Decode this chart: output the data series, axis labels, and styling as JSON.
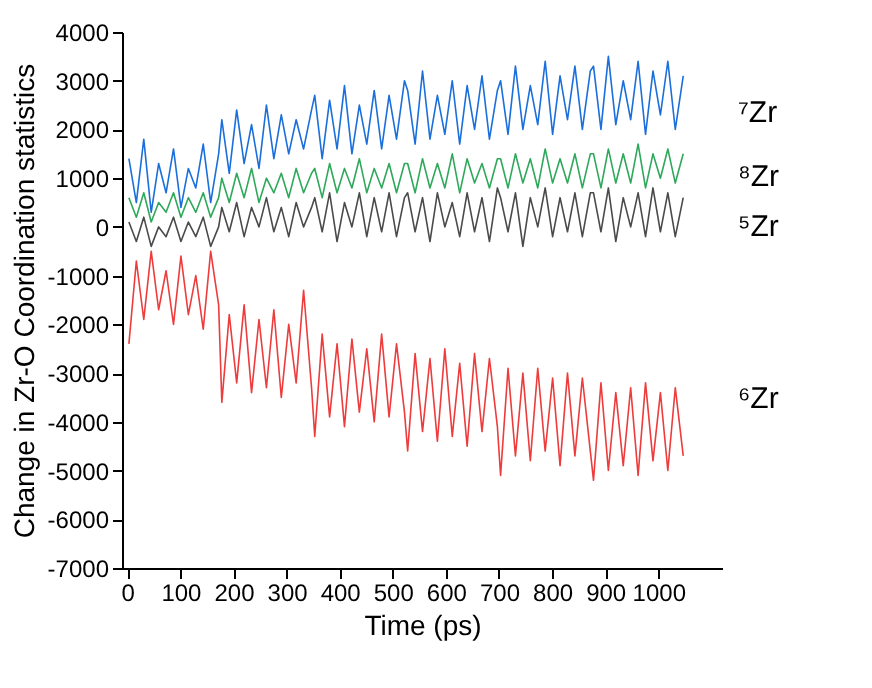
{
  "chart_data": {
    "type": "line",
    "xlabel": "Time (ps)",
    "ylabel": "Change in Zr-O Coordination statistics",
    "x": [
      3,
      17,
      31,
      45,
      59,
      73,
      87,
      101,
      115,
      129,
      143,
      157,
      172,
      178,
      192,
      206,
      220,
      234,
      248,
      262,
      276,
      290,
      304,
      318,
      332,
      347,
      353,
      367,
      381,
      395,
      409,
      423,
      437,
      451,
      465,
      479,
      493,
      507,
      522,
      528,
      542,
      556,
      570,
      584,
      598,
      612,
      626,
      640,
      654,
      668,
      682,
      697,
      703,
      717,
      731,
      745,
      759,
      773,
      787,
      801,
      815,
      829,
      843,
      857,
      872,
      878,
      892,
      906,
      920,
      934,
      948,
      962,
      976,
      990,
      1004,
      1018,
      1032,
      1047
    ],
    "series": [
      {
        "name": "⁷Zr",
        "color": "#1a6fdc",
        "values": [
          1400,
          500,
          1800,
          300,
          1300,
          700,
          1600,
          400,
          1200,
          800,
          1700,
          500,
          1500,
          2200,
          1100,
          2400,
          1300,
          2100,
          1200,
          2500,
          1400,
          2300,
          1500,
          2200,
          1600,
          2400,
          2700,
          1400,
          2600,
          1600,
          2900,
          1500,
          2500,
          1700,
          2800,
          1600,
          2700,
          1800,
          3000,
          2800,
          1700,
          3200,
          1800,
          2700,
          1900,
          3000,
          1700,
          2900,
          2000,
          3100,
          1800,
          2800,
          3000,
          1900,
          3300,
          2000,
          2900,
          2100,
          3400,
          1900,
          3100,
          2200,
          3300,
          2000,
          3200,
          3300,
          2000,
          3500,
          2100,
          3000,
          2200,
          3400,
          1900,
          3200,
          2300,
          3400,
          2000,
          3100
        ]
      },
      {
        "name": "⁸Zr",
        "color": "#2ea85a",
        "values": [
          600,
          200,
          700,
          100,
          500,
          300,
          700,
          200,
          600,
          300,
          700,
          200,
          600,
          1000,
          500,
          1100,
          600,
          1200,
          500,
          1000,
          700,
          1100,
          600,
          1200,
          700,
          1100,
          1200,
          600,
          1300,
          700,
          1200,
          800,
          1400,
          700,
          1200,
          800,
          1300,
          700,
          1300,
          1300,
          700,
          1400,
          800,
          1300,
          800,
          1500,
          700,
          1400,
          900,
          1300,
          800,
          1400,
          1400,
          800,
          1500,
          900,
          1400,
          800,
          1600,
          900,
          1400,
          900,
          1500,
          800,
          1500,
          1500,
          800,
          1600,
          900,
          1500,
          900,
          1700,
          800,
          1500,
          1000,
          1600,
          900,
          1500
        ]
      },
      {
        "name": "⁵Zr",
        "color": "#4a4a4a",
        "values": [
          100,
          -300,
          200,
          -400,
          0,
          -200,
          200,
          -300,
          100,
          -200,
          200,
          -400,
          0,
          400,
          -100,
          500,
          -200,
          400,
          0,
          600,
          -100,
          400,
          -200,
          500,
          0,
          400,
          600,
          -100,
          700,
          -300,
          500,
          0,
          700,
          -200,
          600,
          -100,
          700,
          -200,
          600,
          700,
          -100,
          600,
          -300,
          700,
          0,
          500,
          -200,
          700,
          -100,
          600,
          -300,
          800,
          600,
          -100,
          700,
          -400,
          600,
          0,
          800,
          -200,
          600,
          -100,
          700,
          -200,
          700,
          700,
          -100,
          800,
          -300,
          600,
          0,
          700,
          -200,
          800,
          -100,
          700,
          -200,
          600
        ]
      },
      {
        "name": "⁶Zr",
        "color": "#ee3b3b",
        "values": [
          -2400,
          -700,
          -1900,
          -500,
          -1700,
          -900,
          -2000,
          -600,
          -1800,
          -1000,
          -2100,
          -500,
          -1600,
          -3600,
          -1800,
          -3200,
          -1600,
          -3400,
          -1900,
          -3300,
          -1700,
          -3500,
          -2000,
          -3200,
          -1300,
          -3300,
          -4300,
          -2200,
          -3900,
          -2400,
          -4100,
          -2300,
          -3800,
          -2500,
          -4000,
          -2200,
          -3900,
          -2400,
          -3800,
          -4600,
          -2600,
          -4200,
          -2700,
          -4400,
          -2500,
          -4300,
          -2800,
          -4500,
          -2600,
          -4200,
          -2700,
          -4100,
          -5100,
          -2900,
          -4700,
          -3000,
          -4800,
          -2900,
          -4600,
          -3100,
          -4900,
          -3000,
          -4700,
          -3100,
          -4600,
          -5200,
          -3200,
          -5000,
          -3400,
          -4900,
          -3300,
          -5100,
          -3200,
          -4800,
          -3400,
          -5000,
          -3300,
          -4700
        ]
      }
    ],
    "xlim": [
      -10,
      1120
    ],
    "xticks": [
      0,
      100,
      200,
      300,
      400,
      500,
      600,
      700,
      800,
      900,
      1000
    ],
    "ylim": [
      -7000,
      4000
    ],
    "yticks": [
      -7000,
      -6000,
      -5000,
      -4000,
      -3000,
      -2000,
      -1000,
      0,
      1000,
      2000,
      3000,
      4000
    ],
    "grid": false
  }
}
